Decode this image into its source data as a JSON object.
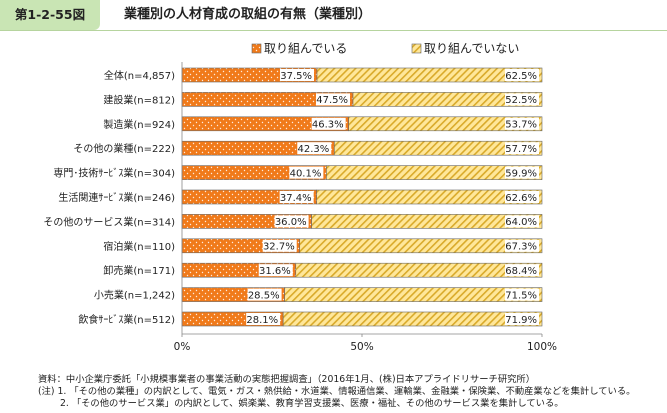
{
  "header": {
    "figure_label": "第1-2-55図",
    "title": "業種別の人材育成の取組の有無（業種別）"
  },
  "notes": {
    "source": "資料：中小企業庁委託「小規模事業者の事業活動の実態把握調査」（2016年1月、(株)日本アプライドリサーチ研究所）",
    "note1": "(注) 1. 「その他の業種」の内訳として、電気・ガス・熱供給・水道業、情報通信業、運輸業、金融業・保険業、不動産業などを集計している。",
    "note2": "2. 「その他のサービス業」の内訳として、娯楽業、教育学習支援業、医療・福祉、その他のサービス業を集計している。"
  },
  "colors": {
    "engaged_fill": "#f07a1a",
    "not_engaged_fill": "#ffe79a",
    "not_engaged_stripe": "#d9aa2a",
    "bar_border": "#666666"
  },
  "chart_data": {
    "type": "bar",
    "orientation": "horizontal",
    "stacked": true,
    "percent": true,
    "legend_position": "top",
    "categories": [
      "全体(n=4,857)",
      "建設業(n=812)",
      "製造業(n=924)",
      "その他の業種(n=222)",
      "専門･技術ｻｰﾋﾞｽ業(n=304)",
      "生活関連ｻｰﾋﾞｽ業(n=246)",
      "その他のサービス業(n=314)",
      "宿泊業(n=110)",
      "卸売業(n=171)",
      "小売業(n=1,242)",
      "飲食ｻｰﾋﾞｽ業(n=512)"
    ],
    "series": [
      {
        "name": "取り組んでいる",
        "values": [
          37.5,
          47.5,
          46.3,
          42.3,
          40.1,
          37.4,
          36.0,
          32.7,
          31.6,
          28.5,
          28.1
        ],
        "labels": [
          "37.5%",
          "47.5%",
          "46.3%",
          "42.3%",
          "40.1%",
          "37.4%",
          "36.0%",
          "32.7%",
          "31.6%",
          "28.5%",
          "28.1%"
        ]
      },
      {
        "name": "取り組んでいない",
        "values": [
          62.5,
          52.5,
          53.7,
          57.7,
          59.9,
          62.6,
          64.0,
          67.3,
          68.4,
          71.5,
          71.9
        ],
        "labels": [
          "62.5%",
          "52.5%",
          "53.7%",
          "57.7%",
          "59.9%",
          "62.6%",
          "64.0%",
          "67.3%",
          "68.4%",
          "71.5%",
          "71.9%"
        ]
      }
    ],
    "x_ticks": [
      "0%",
      "50%",
      "100%"
    ],
    "xlim": [
      0,
      100
    ],
    "grid": false
  }
}
